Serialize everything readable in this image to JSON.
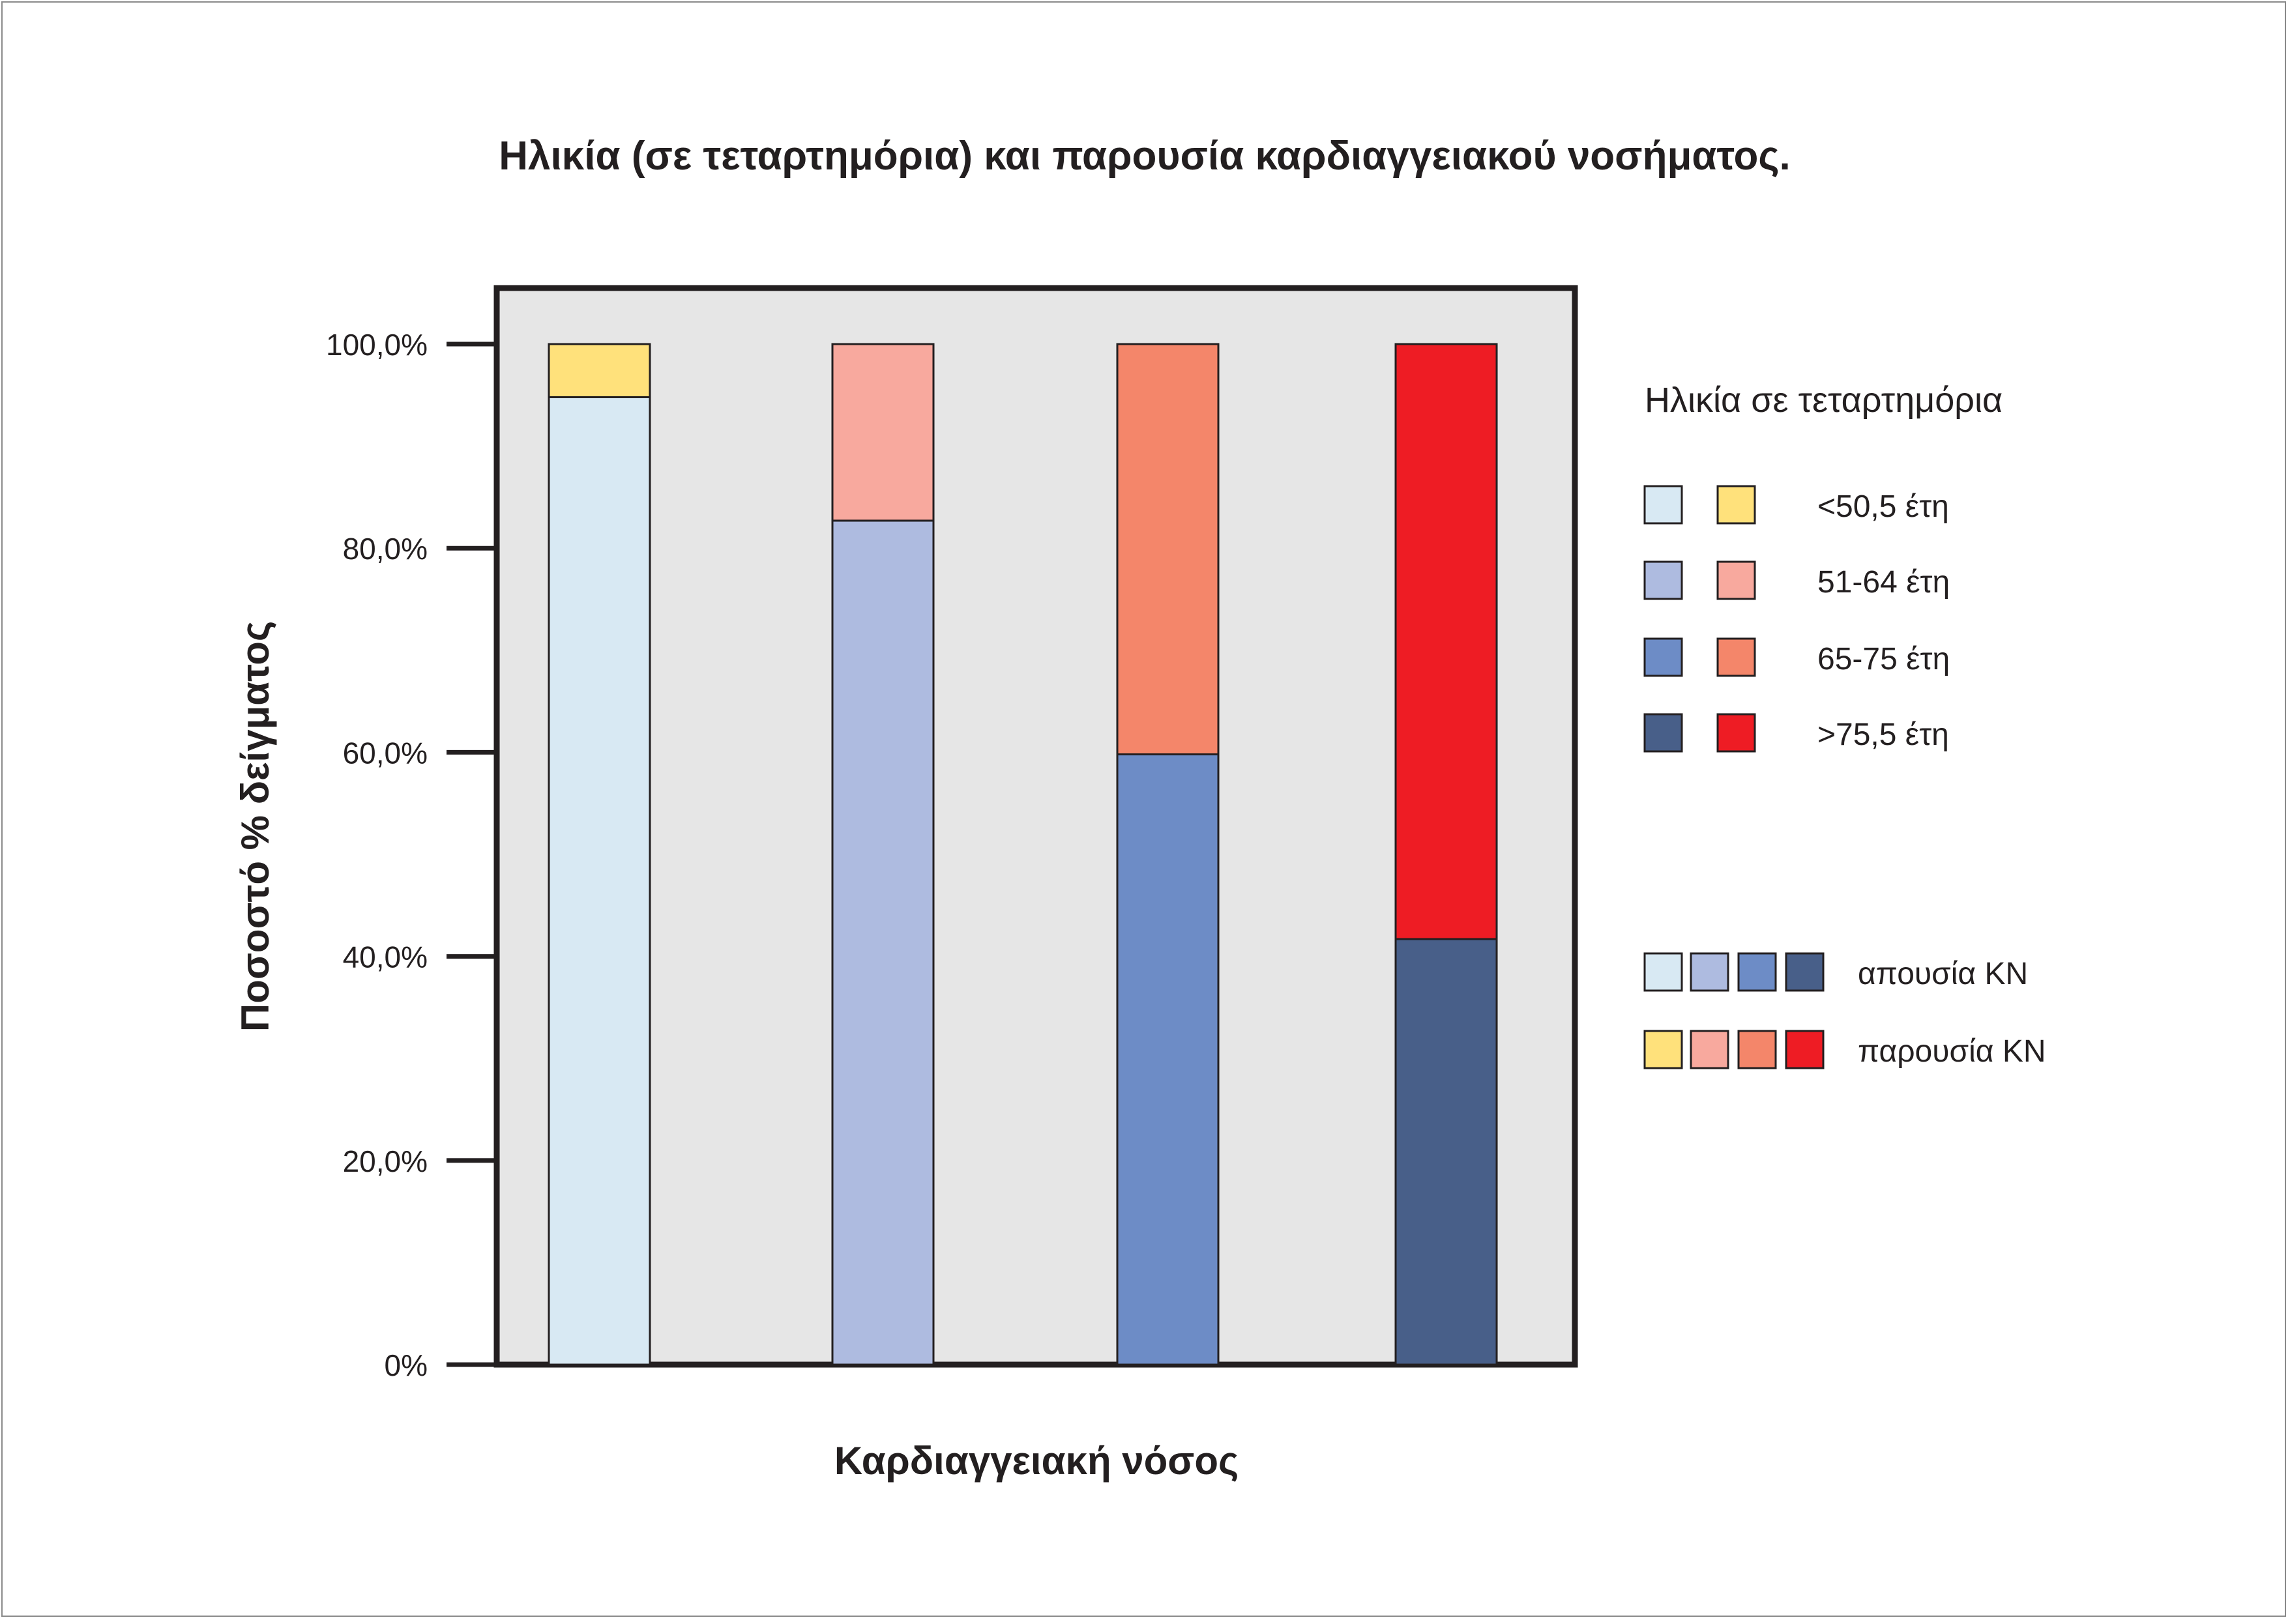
{
  "chart_data": {
    "type": "bar",
    "stacked": true,
    "title": "Ηλικία (σε τεταρτημόρια) και παρουσία καρδιαγγειακού νοσήματος.",
    "xlabel": "Καρδιαγγειακή νόσος",
    "ylabel": "Ποσοστό % δείγματος",
    "ylim": [
      0,
      100
    ],
    "yticks": [
      {
        "value": 0,
        "label": "0%"
      },
      {
        "value": 20,
        "label": "20,0%"
      },
      {
        "value": 40,
        "label": "40,0%"
      },
      {
        "value": 60,
        "label": "60,0%"
      },
      {
        "value": 80,
        "label": "80,0%"
      },
      {
        "value": 100,
        "label": "100,0%"
      }
    ],
    "grid": false,
    "legend_position": "right",
    "legend_title": "Ηλικία σε τεταρτημόρια",
    "age_groups": [
      "<50,5 έτη",
      "51-64 έτη",
      "65-75 έτη",
      ">75,5 έτη"
    ],
    "disease_status": [
      "απουσία ΚΝ",
      "παρουσία ΚΝ"
    ],
    "series": [
      {
        "name": "απουσία ΚΝ",
        "values": [
          94.8,
          82.7,
          59.8,
          41.7
        ],
        "colors": [
          "#d8e9f3",
          "#aebbe0",
          "#6d8cc6",
          "#485f89"
        ]
      },
      {
        "name": "παρουσία ΚΝ",
        "values": [
          5.2,
          17.3,
          40.2,
          58.3
        ],
        "colors": [
          "#ffe17b",
          "#f8a99e",
          "#f4866a",
          "#ee1c24"
        ]
      }
    ]
  },
  "colors": {
    "plot_background": "#e6e6e6",
    "frame": "#231f20",
    "text": "#231f20"
  }
}
